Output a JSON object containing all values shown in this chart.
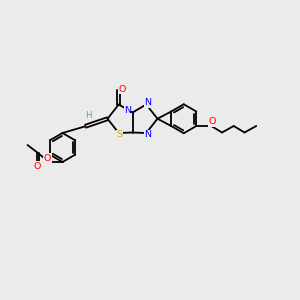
{
  "bg_color": "#ebebeb",
  "atom_colors": {
    "C": "#000000",
    "N": "#0000ff",
    "O": "#ff0000",
    "S": "#ccaa00",
    "H": "#5f9ea0"
  },
  "bond_lw": 1.3,
  "figsize": [
    3.0,
    3.0
  ],
  "dpi": 100,
  "xlim": [
    0,
    12
  ],
  "ylim": [
    0,
    10
  ]
}
